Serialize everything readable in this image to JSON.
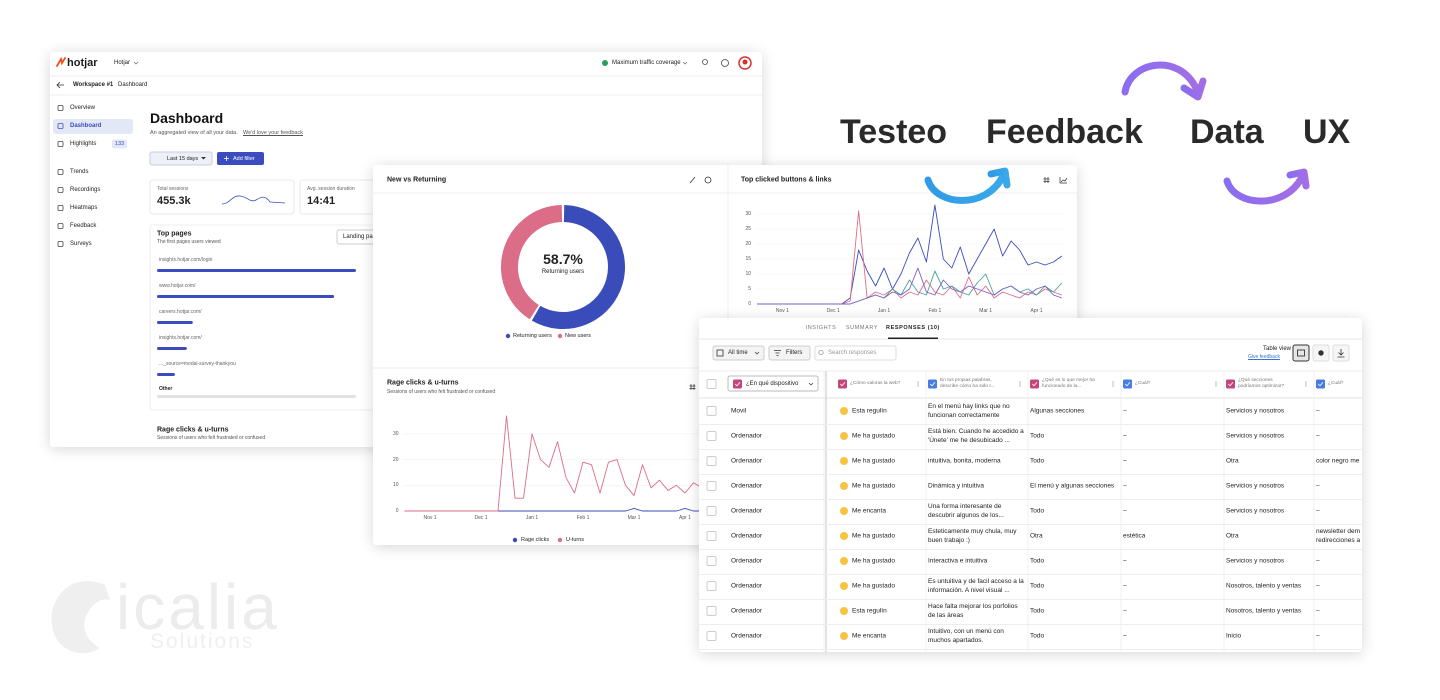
{
  "headline": {
    "words": [
      "Testeo",
      "Feedback",
      "Data",
      "UX"
    ]
  },
  "logo": {
    "name": "icalia",
    "tagline": "Solutions"
  },
  "dashboard": {
    "brand": "hotjar",
    "site": "Hotjar",
    "coverage": "Maximum traffic coverage",
    "breadcrumb": [
      "Workspace #1",
      "Dashboard"
    ],
    "nav": [
      "Overview",
      "Dashboard",
      "Highlights",
      "Trends",
      "Recordings",
      "Heatmaps",
      "Feedback",
      "Surveys"
    ],
    "highlights_count": "133",
    "title": "Dashboard",
    "subtitle": "An aggregated view of all your data.",
    "feedback_link": "We'd love your feedback",
    "date_filter": "Last 15 days",
    "add_filter": "Add filter",
    "stats": [
      {
        "label": "Total sessions",
        "value": "455.3k"
      },
      {
        "label": "Avg. session duration",
        "value": "14:41"
      }
    ],
    "top_pages": {
      "title": "Top pages",
      "subtitle": "The first pages users viewed",
      "tab": "Landing pages",
      "pages": [
        "insights.hotjar.com/login",
        "www.hotjar.com/",
        "careers.hotjar.com/",
        "insights.hotjar.com/",
        "..._source=modal-survey-thankyou"
      ],
      "values": [
        100,
        89,
        18,
        15,
        9
      ],
      "other": "Other"
    },
    "rage_title": "Rage clicks & u-turns",
    "rage_subtitle": "Sessions of users who felt frustrated or confused"
  },
  "chart_data": [
    {
      "type": "pie",
      "title": "New vs Returning",
      "categories": [
        "Returning users",
        "New users"
      ],
      "values": [
        58.7,
        41.3
      ],
      "value_labels": [
        "58.7%",
        null
      ],
      "colors": [
        "#3a4cb9",
        "#dc6d88"
      ],
      "legend": "bottom"
    },
    {
      "type": "line",
      "title": "Top clicked buttons & links",
      "categories": [
        null,
        null,
        null,
        "Nov 1",
        null,
        null,
        null,
        null,
        null,
        "Dec 1",
        null,
        null,
        null,
        null,
        null,
        "Jan 1",
        null,
        null,
        null,
        null,
        null,
        "Feb 1",
        null,
        null,
        null,
        null,
        null,
        "Mar 1",
        null,
        null,
        null,
        null,
        null,
        "Apr 1",
        null,
        null,
        null
      ],
      "series": [
        {
          "color": "#3a4cb9",
          "values": [
            0,
            0,
            0,
            0,
            0,
            0,
            0,
            0,
            0,
            0,
            0,
            2,
            18,
            11,
            6,
            12,
            5,
            10,
            17,
            22,
            14,
            33,
            15,
            12,
            19,
            10,
            15,
            20,
            25,
            16,
            21,
            18,
            13,
            14,
            13,
            14,
            16
          ]
        },
        {
          "color": "#dc6d88",
          "values": [
            0,
            0,
            0,
            0,
            0,
            0,
            0,
            0,
            0,
            0,
            0,
            1,
            31,
            2,
            4,
            3,
            5,
            2,
            4,
            3,
            8,
            4,
            3,
            6,
            2,
            9,
            3,
            6,
            2,
            4,
            3,
            2,
            4,
            3,
            5,
            4,
            3
          ]
        },
        {
          "color": "#4aa39a",
          "values": [
            0,
            0,
            0,
            0,
            0,
            0,
            0,
            0,
            0,
            0,
            0,
            0,
            1,
            2,
            3,
            2,
            5,
            3,
            8,
            4,
            3,
            11,
            5,
            6,
            4,
            3,
            7,
            10,
            3,
            5,
            6,
            4,
            5,
            3,
            6,
            4,
            7
          ]
        },
        {
          "color": "#7a5fc8",
          "values": [
            0,
            0,
            0,
            0,
            0,
            0,
            0,
            0,
            0,
            0,
            0,
            0,
            1,
            2,
            3,
            2,
            4,
            3,
            5,
            12,
            4,
            3,
            8,
            5,
            4,
            6,
            5,
            4,
            3,
            5,
            6,
            4,
            3,
            5,
            6,
            3,
            2
          ]
        }
      ],
      "ylim": [
        0,
        32
      ],
      "yticks": [
        0,
        5,
        10,
        15,
        20,
        25,
        30
      ],
      "grid": true
    },
    {
      "type": "line",
      "title": "Rage clicks & u-turns",
      "subtitle": "Sessions of users who felt frustrated or confused",
      "categories": [
        null,
        null,
        null,
        "Nov 1",
        null,
        null,
        null,
        null,
        null,
        "Dec 1",
        null,
        null,
        null,
        null,
        null,
        "Jan 1",
        null,
        null,
        null,
        null,
        null,
        "Feb 1",
        null,
        null,
        null,
        null,
        null,
        "Mar 1",
        null,
        null,
        null,
        null,
        null,
        "Apr 1",
        null,
        null,
        null
      ],
      "series": [
        {
          "name": "Rage clicks",
          "color": "#3a4cb9",
          "values": [
            0,
            0,
            0,
            0,
            0,
            0,
            0,
            0,
            0,
            0,
            0,
            0,
            0,
            0,
            0,
            0,
            0,
            0,
            0,
            0,
            0,
            0,
            0,
            0,
            0,
            0,
            0,
            1,
            0,
            0,
            0,
            0,
            0,
            1,
            0,
            0,
            0
          ]
        },
        {
          "name": "U-turns",
          "color": "#dc6d88",
          "values": [
            0,
            0,
            0,
            0,
            0,
            0,
            0,
            0,
            0,
            0,
            0,
            0,
            37,
            5,
            5,
            30,
            20,
            17,
            27,
            13,
            7,
            19,
            18,
            7,
            19,
            20,
            10,
            6,
            18,
            9,
            12,
            8,
            10,
            7,
            11,
            9,
            10
          ]
        }
      ],
      "ylim": [
        0,
        40
      ],
      "yticks": [
        0,
        10,
        20,
        30
      ],
      "grid": true,
      "legend": "bottom"
    }
  ],
  "responses": {
    "tabs": [
      "INSIGHTS",
      "SUMMARY",
      "RESPONSES (10)"
    ],
    "period": "All time",
    "filters": "Filters",
    "search": "Search responses",
    "view": "Table view",
    "give_feedback": "Give feedback",
    "columns": [
      "¿En qué dispositivo",
      "¿Cómo valoras la web?",
      "En tus propias palabras, describe cómo ha sido t...",
      "¿Qué es lo que mejor ha funcionado de la...",
      "¿Cuál?",
      "¿Qué secciones podríamos optimizar?",
      "¿Cuál?"
    ],
    "rows": [
      [
        "Movil",
        "Esta regulín",
        "En el menú hay links que no funcionan correctamente",
        "Algunas secciones",
        "–",
        "Servicios y nosotros",
        "–"
      ],
      [
        "Ordenador",
        "Me ha gustado",
        "Está bien. Cuando he accedido a 'Únete' me he desubicado ...",
        "Todo",
        "–",
        "Servicios y nosotros",
        "–"
      ],
      [
        "Ordenador",
        "Me ha gustado",
        "intuitiva, bonita, moderna",
        "Todo",
        "–",
        "Otra",
        "color negro me"
      ],
      [
        "Ordenador",
        "Me ha gustado",
        "Dinámica y intuitiva",
        "El menú y algunas secciones",
        "–",
        "Servicios y nosotros",
        "–"
      ],
      [
        "Ordenador",
        "Me encanta",
        "Una forma interesante de descubrir algunos de los...",
        "Todo",
        "–",
        "Servicios y nosotros",
        "–"
      ],
      [
        "Ordenador",
        "Me ha gustado",
        "Esteticamente muy chula, muy buen trabajo :)",
        "Otra",
        "estética",
        "Otra",
        "newsletter dem redirecciones a"
      ],
      [
        "Ordenador",
        "Me ha gustado",
        "Interactiva e intuitiva",
        "Todo",
        "–",
        "Servicios y nosotros",
        "–"
      ],
      [
        "Ordenador",
        "Me ha gustado",
        "Es untuitiva y de facil acceso a la información. A nivel visual ...",
        "Todo",
        "–",
        "Nosotros, talento y ventas",
        "–"
      ],
      [
        "Ordenador",
        "Esta regulín",
        "Hace falta mejorar los porfolios de las áreas",
        "Todo",
        "–",
        "Nosotros, talento y ventas",
        "–"
      ],
      [
        "Ordenador",
        "Me encanta",
        "Intuitivo, con un menú con muchos apartados.",
        "Todo",
        "–",
        "Inicio",
        "–"
      ]
    ]
  }
}
